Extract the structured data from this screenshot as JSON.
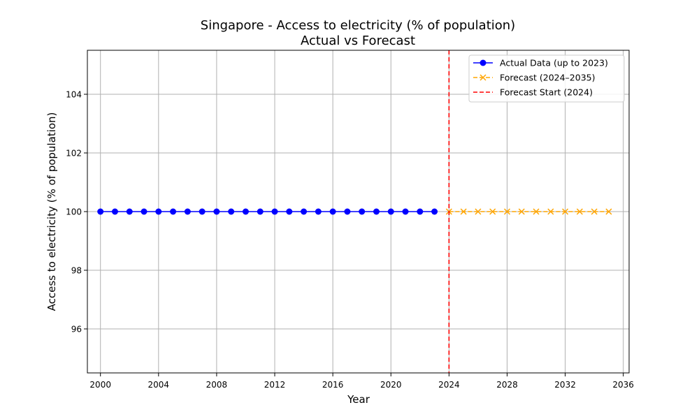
{
  "chart_data": {
    "type": "line",
    "title": "Singapore - Access to electricity (% of population)",
    "subtitle": "Actual vs Forecast",
    "xlabel": "Year",
    "ylabel": "Access to electricity (% of population)",
    "xlim": [
      1999.1,
      2036.4
    ],
    "ylim": [
      94.5,
      105.5
    ],
    "xticks": [
      2000,
      2004,
      2008,
      2012,
      2016,
      2020,
      2024,
      2028,
      2032,
      2036
    ],
    "yticks": [
      96,
      98,
      100,
      102,
      104
    ],
    "grid": true,
    "legend_position": "top-right",
    "series": [
      {
        "name": "Actual Data (up to 2023)",
        "style": "solid-circle",
        "color": "#0000ff",
        "x": [
          2000,
          2001,
          2002,
          2003,
          2004,
          2005,
          2006,
          2007,
          2008,
          2009,
          2010,
          2011,
          2012,
          2013,
          2014,
          2015,
          2016,
          2017,
          2018,
          2019,
          2020,
          2021,
          2022,
          2023
        ],
        "y": [
          100,
          100,
          100,
          100,
          100,
          100,
          100,
          100,
          100,
          100,
          100,
          100,
          100,
          100,
          100,
          100,
          100,
          100,
          100,
          100,
          100,
          100,
          100,
          100
        ]
      },
      {
        "name": "Forecast (2024–2035)",
        "style": "dashed-x",
        "color": "#ffa500",
        "x": [
          2024,
          2025,
          2026,
          2027,
          2028,
          2029,
          2030,
          2031,
          2032,
          2033,
          2034,
          2035
        ],
        "y": [
          100,
          100,
          100,
          100,
          100,
          100,
          100,
          100,
          100,
          100,
          100,
          100
        ]
      }
    ],
    "vlines": [
      {
        "name": "Forecast Start (2024)",
        "x": 2024,
        "color": "#ff0000",
        "style": "dashed"
      }
    ]
  }
}
